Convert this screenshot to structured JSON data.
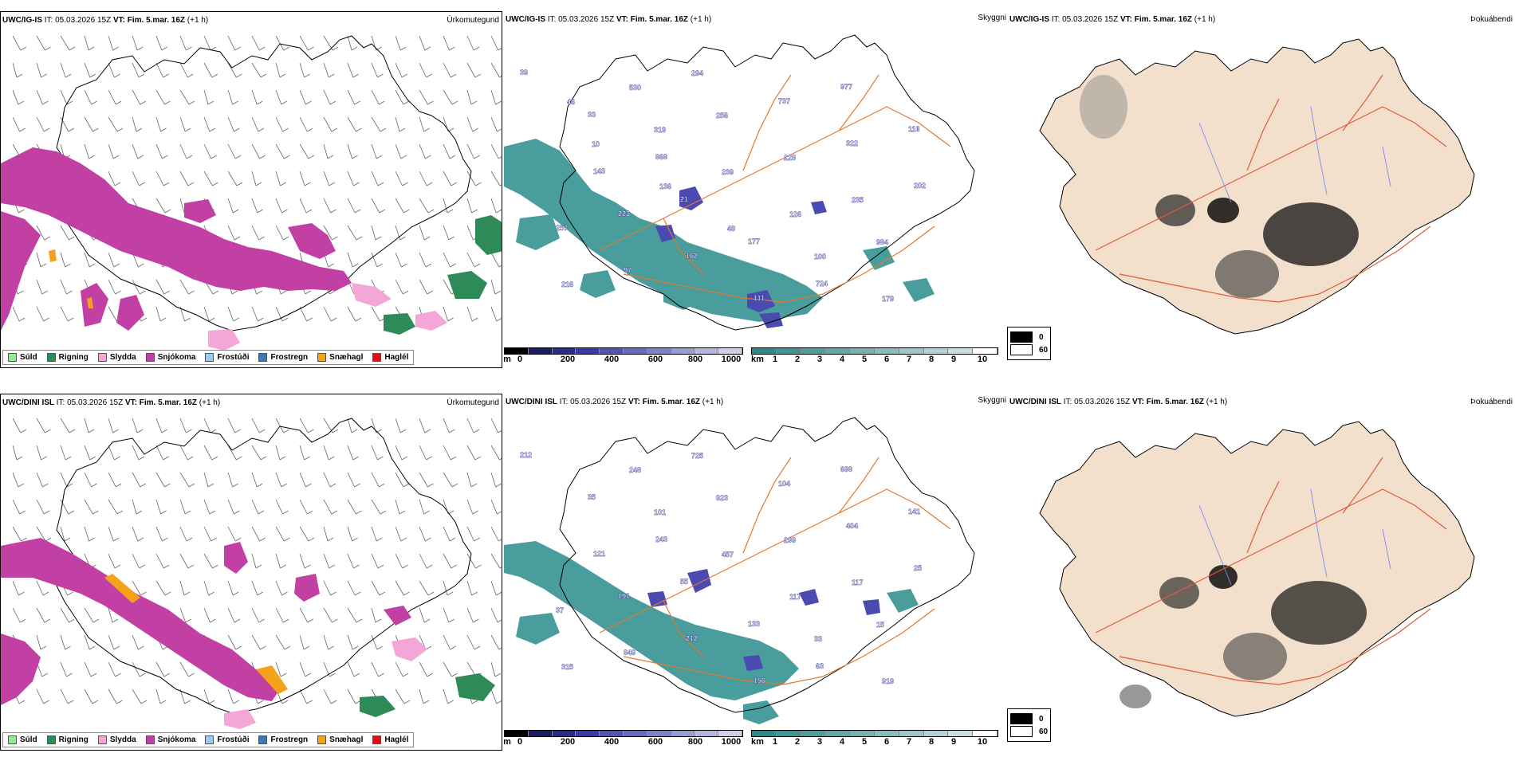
{
  "rows": [
    {
      "model": "UWC/IG-IS",
      "it_label": "IT:",
      "it_value": "05.03.2026 15Z",
      "vt_label": "VT:",
      "vt_value": "Fim. 5.mar. 16Z",
      "step": "(+1 h)"
    },
    {
      "model": "UWC/DINI ISL",
      "it_label": "IT:",
      "it_value": "05.03.2026 15Z",
      "vt_label": "VT:",
      "vt_value": "Fim. 5.mar. 16Z",
      "step": "(+1 h)"
    }
  ],
  "panel_titles": {
    "precip_type": "Úrkomutegund",
    "visibility": "Skyggni",
    "fog": "Þokuábendi"
  },
  "precip_legend": [
    {
      "label": "Súld",
      "color": "#90ee90"
    },
    {
      "label": "Rigning",
      "color": "#2e8b57"
    },
    {
      "label": "Slydda",
      "color": "#f4a6d6"
    },
    {
      "label": "Snjókoma",
      "color": "#c23fa4"
    },
    {
      "label": "Frostúði",
      "color": "#9ec9f0"
    },
    {
      "label": "Frostregn",
      "color": "#3a78c2"
    },
    {
      "label": "Snæhagl",
      "color": "#f5a21b"
    },
    {
      "label": "Haglél",
      "color": "#e01010"
    }
  ],
  "ceiling_scale": {
    "unit": "m",
    "ticks": [
      "0",
      "200",
      "400",
      "600",
      "800",
      "1000"
    ],
    "colors": [
      "#000000",
      "#1a1a66",
      "#2b2b8f",
      "#3b3ba8",
      "#5252b8",
      "#6a6ac4",
      "#8080cc",
      "#9a9ad6",
      "#b4b4e0",
      "#cfcfec"
    ]
  },
  "visibility_scale": {
    "unit": "km",
    "ticks": [
      "1",
      "2",
      "3",
      "4",
      "5",
      "6",
      "7",
      "8",
      "9",
      "10"
    ],
    "colors": [
      "#2a8c8c",
      "#3d9595",
      "#4f9e9e",
      "#62a8a8",
      "#76b2b2",
      "#8abcbc",
      "#9ec7c7",
      "#b3d3d3",
      "#c8dfdf",
      "#ffffff"
    ]
  },
  "fog_key": {
    "items": [
      {
        "label": "0",
        "color": "#000000"
      },
      {
        "label": "60",
        "color": "#ffffff"
      }
    ]
  },
  "ceiling_labels": {
    "row0": [
      "39",
      "33",
      "868",
      "21",
      "177",
      "724",
      "977",
      "116",
      "143",
      "223",
      "162",
      "111",
      "737",
      "322",
      "202",
      "257",
      "97",
      "294",
      "256",
      "228",
      "235",
      "984",
      "216",
      "530",
      "319",
      "239",
      "126",
      "100",
      "179",
      "46",
      "10",
      "136",
      "48"
    ],
    "row1": [
      "212",
      "35",
      "243",
      "55",
      "133",
      "63",
      "698",
      "141",
      "121",
      "191",
      "212",
      "156",
      "104",
      "404",
      "25",
      "37",
      "849",
      "725",
      "923",
      "299",
      "117",
      "15",
      "315",
      "248",
      "101",
      "457",
      "117",
      "33",
      "919"
    ]
  },
  "colors": {
    "land_fog": "#f2e0cc",
    "roads": "#e07a2c",
    "roads_fog": "#e05a3a",
    "rivers": "#7a8cf0",
    "vis_fill": "#2a8c8c",
    "ceiling_fill": "#4a4ab0",
    "snow": "#c23fa4",
    "sleet": "#f4a6d6",
    "rain": "#2e8b57",
    "graupel": "#f5a21b"
  }
}
